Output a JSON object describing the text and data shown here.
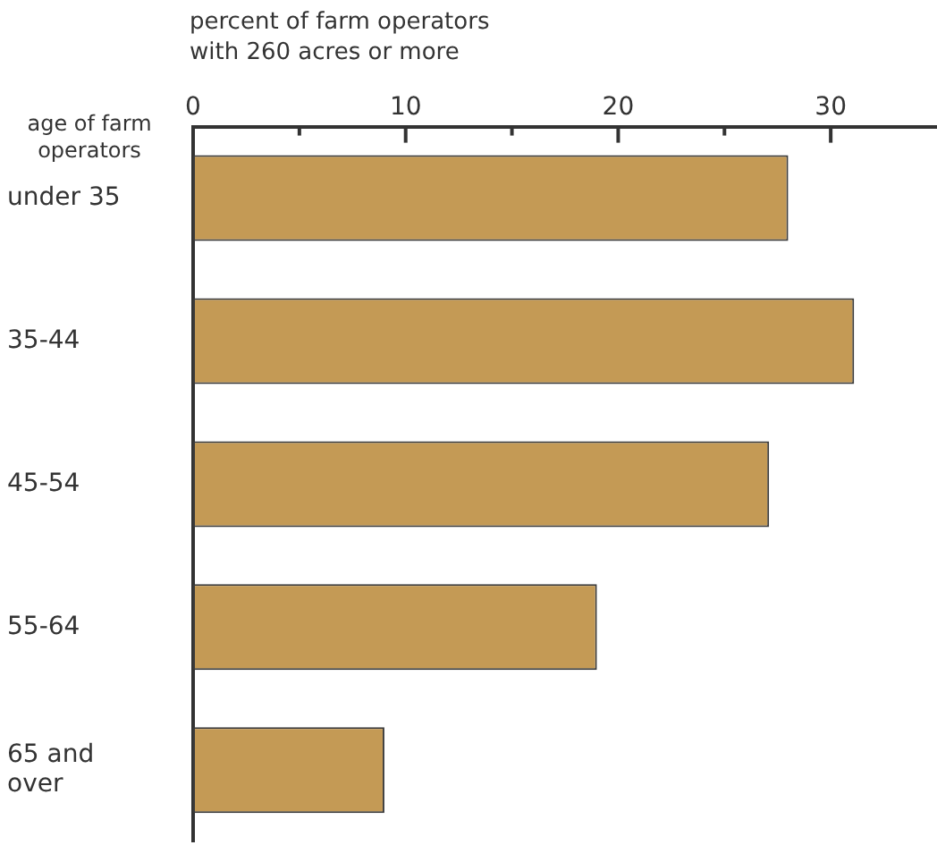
{
  "chart_data": {
    "type": "bar",
    "orientation": "horizontal",
    "xlabel": "percent of farm operators with 260 acres or more",
    "ylabel": "age of farm operators",
    "categories": [
      "under 35",
      "35-44",
      "45-54",
      "55-64",
      "65 and over"
    ],
    "values": [
      28,
      31.1,
      27.1,
      19,
      9
    ],
    "color": "#c49a55",
    "xlim": [
      0,
      35
    ],
    "xticks": [
      0,
      {
        "value": 5,
        "label": null
      },
      10,
      {
        "value": 15,
        "label": null
      },
      20,
      {
        "value": 25,
        "label": null
      },
      30
    ],
    "grid": false,
    "legend": false
  }
}
